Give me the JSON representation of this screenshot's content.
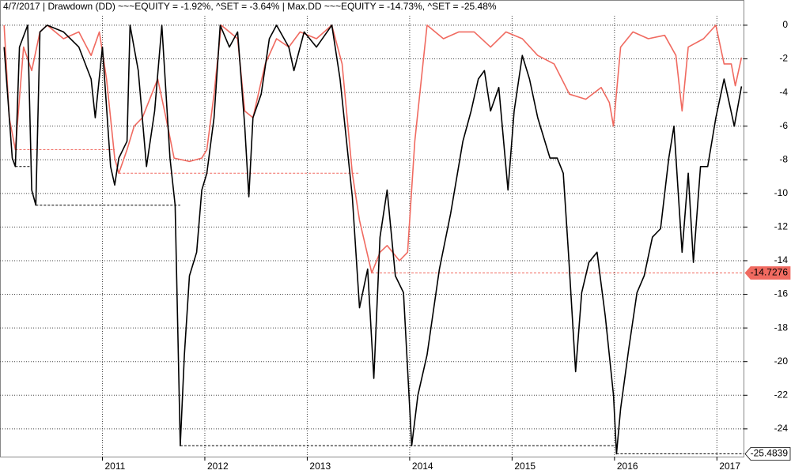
{
  "chart_data": {
    "type": "line",
    "title": "4/7/2017  |  Drawdown (DD) ~~~EQUITY = -1.92%, ^SET = -3.64%  |  Max.DD ~~~EQUITY = -14.73%, ^SET = -25.48%",
    "xlim": [
      2010.0,
      2017.26
    ],
    "xticks": [
      2011,
      2012,
      2013,
      2014,
      2015,
      2016,
      2017
    ],
    "ylim": [
      -25.65,
      0.56
    ],
    "yticks": [
      0,
      -2,
      -4,
      -6,
      -8,
      -10,
      -12,
      -14,
      -16,
      -18,
      -20,
      -22,
      -24
    ],
    "grid": true,
    "series": [
      {
        "color": "#f06a60",
        "x": [
          2010.04,
          2010.09,
          2010.15,
          2010.23,
          2010.31,
          2010.39,
          2010.46,
          2010.62,
          2010.77,
          2010.89,
          2010.97,
          2011.04,
          2011.12,
          2011.16,
          2011.24,
          2011.31,
          2011.39,
          2011.54,
          2011.62,
          2011.7,
          2011.85,
          2011.97,
          2012.02,
          2012.09,
          2012.16,
          2012.32,
          2012.39,
          2012.47,
          2012.59,
          2012.7,
          2012.82,
          2012.93,
          2013.09,
          2013.24,
          2013.34,
          2013.44,
          2013.51,
          2013.63,
          2013.71,
          2013.78,
          2013.9,
          2013.98,
          2014.05,
          2014.13,
          2014.17,
          2014.33,
          2014.48,
          2014.63,
          2014.79,
          2014.94,
          2015.1,
          2015.25,
          2015.41,
          2015.56,
          2015.72,
          2015.87,
          2015.95,
          2015.99,
          2016.06,
          2016.18,
          2016.33,
          2016.49,
          2016.6,
          2016.66,
          2016.72,
          2016.87,
          2016.99,
          2017.07,
          2017.14,
          2017.18,
          2017.24
        ],
        "values": [
          0,
          -5.5,
          -7.4,
          -1.3,
          -2.7,
          -0.4,
          0,
          -0.8,
          -0.4,
          -1.8,
          -0.4,
          -3.2,
          -7.9,
          -8.8,
          -7.4,
          -6.0,
          -5.5,
          -3.2,
          -5.5,
          -7.9,
          -8.1,
          -7.9,
          -7.4,
          -4.1,
          0,
          -0.8,
          -5.1,
          -5.5,
          -2.3,
          -0.8,
          -1.3,
          -0.4,
          -0.8,
          0,
          -2.3,
          -8.8,
          -11.6,
          -14.73,
          -13.5,
          -13.1,
          -14.0,
          -13.5,
          -6.9,
          -2.3,
          0,
          -0.8,
          -0.4,
          -0.4,
          -1.3,
          -0.4,
          -0.8,
          -1.8,
          -2.3,
          -4.1,
          -4.4,
          -3.7,
          -4.6,
          -6.0,
          -1.3,
          -0.4,
          -0.8,
          -0.6,
          -1.8,
          -5.1,
          -1.3,
          -0.8,
          0,
          -2.3,
          -2.3,
          -3.6,
          -1.92
        ]
      },
      {
        "color": "#000000",
        "x": [
          2010.04,
          2010.12,
          2010.15,
          2010.19,
          2010.27,
          2010.31,
          2010.35,
          2010.39,
          2010.46,
          2010.62,
          2010.77,
          2010.89,
          2010.93,
          2011.0,
          2011.08,
          2011.12,
          2011.16,
          2011.24,
          2011.27,
          2011.35,
          2011.43,
          2011.51,
          2011.58,
          2011.66,
          2011.71,
          2011.76,
          2011.8,
          2011.85,
          2011.92,
          2011.97,
          2012.02,
          2012.09,
          2012.15,
          2012.24,
          2012.32,
          2012.39,
          2012.43,
          2012.47,
          2012.55,
          2012.63,
          2012.7,
          2012.82,
          2012.87,
          2012.97,
          2013.09,
          2013.24,
          2013.32,
          2013.44,
          2013.51,
          2013.59,
          2013.65,
          2013.71,
          2013.78,
          2013.86,
          2013.94,
          2014.02,
          2014.08,
          2014.17,
          2014.29,
          2014.4,
          2014.52,
          2014.6,
          2014.67,
          2014.73,
          2014.79,
          2014.87,
          2014.96,
          2015.02,
          2015.1,
          2015.17,
          2015.25,
          2015.37,
          2015.44,
          2015.5,
          2015.55,
          2015.62,
          2015.68,
          2015.75,
          2015.83,
          2015.91,
          2015.99,
          2016.02,
          2016.06,
          2016.14,
          2016.22,
          2016.29,
          2016.37,
          2016.45,
          2016.53,
          2016.58,
          2016.66,
          2016.72,
          2016.77,
          2016.84,
          2016.91,
          2016.99,
          2017.07,
          2017.17,
          2017.24
        ],
        "values": [
          -1.3,
          -7.9,
          -8.4,
          -1.3,
          0,
          -9.8,
          -10.7,
          -0.4,
          0,
          -0.4,
          -1.3,
          -3.2,
          -5.5,
          -1.3,
          -8.4,
          -9.5,
          -7.9,
          -6.9,
          0,
          -2.7,
          -8.4,
          -5.1,
          0,
          -7.9,
          -10.7,
          -25.0,
          -19.6,
          -14.9,
          -13.5,
          -9.8,
          -8.8,
          -5.5,
          0,
          -1.3,
          -0.4,
          -6.0,
          -10.2,
          -5.5,
          -4.1,
          -0.8,
          0,
          -1.3,
          -2.7,
          -0.4,
          -1.3,
          0,
          -3.2,
          -10.2,
          -16.8,
          -14.5,
          -21.0,
          -12.6,
          -9.8,
          -14.9,
          -15.9,
          -25.0,
          -22.0,
          -19.6,
          -14.5,
          -11.2,
          -6.9,
          -5.1,
          -3.2,
          -2.7,
          -5.1,
          -3.7,
          -9.8,
          -5.1,
          -1.8,
          -3.2,
          -5.5,
          -7.9,
          -7.9,
          -8.8,
          -13.5,
          -20.6,
          -15.9,
          -14.1,
          -13.5,
          -17.3,
          -22.0,
          -25.48,
          -22.8,
          -19.2,
          -15.9,
          -14.9,
          -12.6,
          -12.1,
          -7.9,
          -6.0,
          -13.5,
          -8.8,
          -14.1,
          -8.4,
          -8.4,
          -5.5,
          -3.2,
          -6.0,
          -3.64
        ]
      }
    ],
    "annotations": [
      {
        "value": -14.7276,
        "color": "#f06a60"
      },
      {
        "value": -25.4839,
        "color": "#ffffff"
      }
    ]
  }
}
